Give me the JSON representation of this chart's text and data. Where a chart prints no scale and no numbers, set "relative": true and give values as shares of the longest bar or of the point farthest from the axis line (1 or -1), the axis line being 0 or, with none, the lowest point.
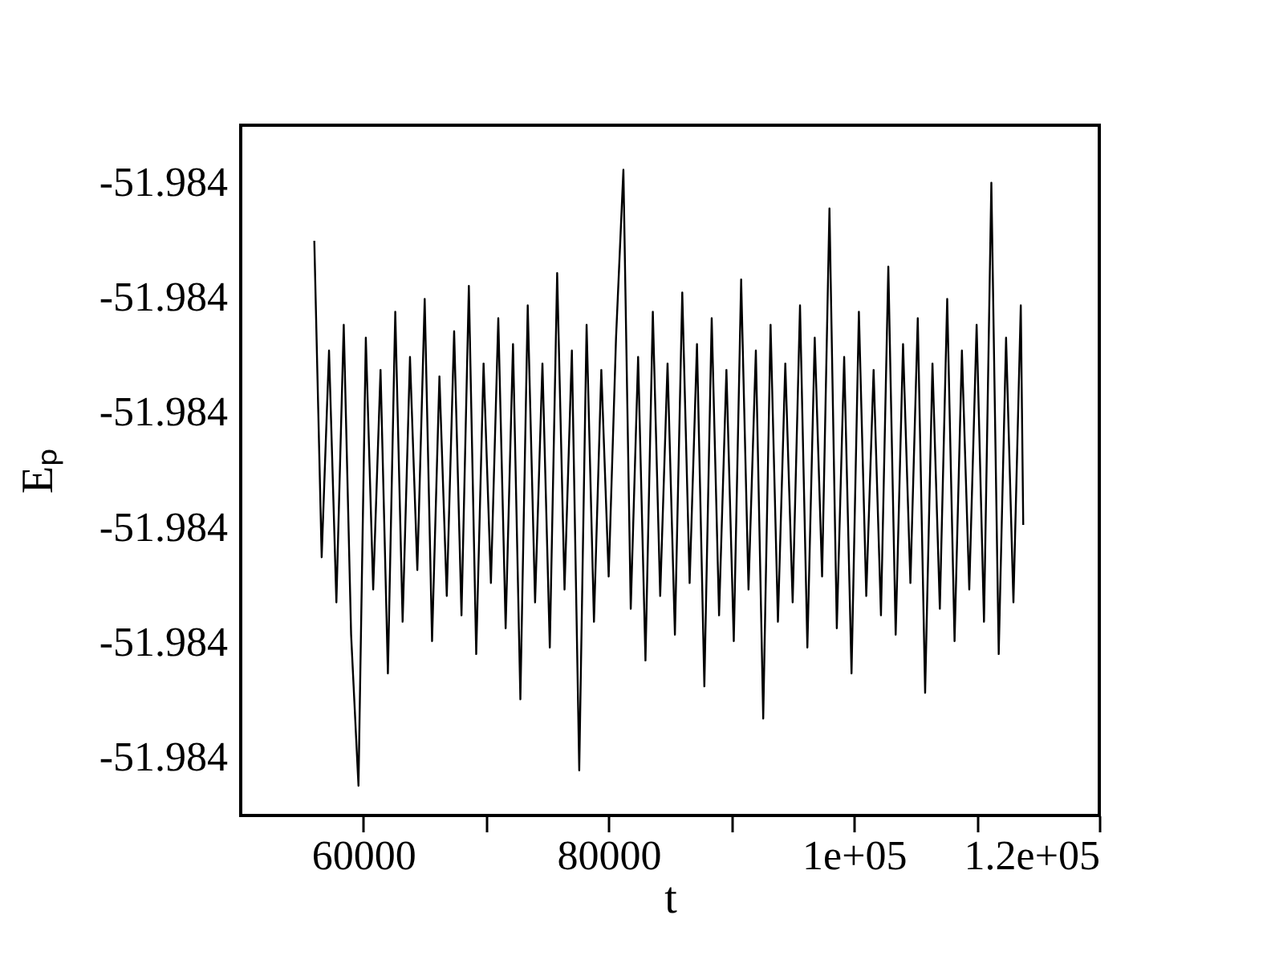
{
  "chart_data": {
    "type": "line",
    "relative": true,
    "xlabel": "t",
    "ylabel": "Eₚ",
    "xlim": [
      50000,
      120000
    ],
    "xticks": [
      {
        "value": 60000,
        "label": "60000"
      },
      {
        "value": 70000,
        "label": null
      },
      {
        "value": 80000,
        "label": "80000"
      },
      {
        "value": 90000,
        "label": null
      },
      {
        "value": 100000,
        "label": "1e+05"
      },
      {
        "value": 110000,
        "label": null
      },
      {
        "value": 120000,
        "label": "1.2e+05"
      }
    ],
    "ylim": [
      0,
      1.069
    ],
    "annotations": [
      "-51.984",
      "-51.984",
      "-51.984",
      "-51.984",
      "-51.984",
      "-51.984"
    ],
    "grid": false,
    "marker": "none",
    "line_style": "solid",
    "series": [
      {
        "color": "#000000",
        "x": [
          56000,
          56600,
          57200,
          57800,
          58400,
          59000,
          59600,
          60200,
          60800,
          61400,
          62000,
          62600,
          63200,
          63800,
          64400,
          65000,
          65600,
          66200,
          66800,
          67400,
          68000,
          68600,
          69200,
          69800,
          70400,
          71000,
          71600,
          72200,
          72800,
          73400,
          74000,
          74600,
          75200,
          75800,
          76400,
          77000,
          77600,
          78200,
          78800,
          79400,
          80000,
          80600,
          81200,
          81800,
          82400,
          83000,
          83600,
          84200,
          84800,
          85400,
          86000,
          86600,
          87200,
          87800,
          88400,
          89000,
          89600,
          90200,
          90800,
          91400,
          92000,
          92600,
          93200,
          93800,
          94400,
          95000,
          95600,
          96200,
          96800,
          97400,
          98000,
          98600,
          99200,
          99800,
          100400,
          101000,
          101600,
          102200,
          102800,
          103400,
          104000,
          104600,
          105200,
          105800,
          106400,
          107000,
          107600,
          108200,
          108800,
          109400,
          110000,
          110600,
          111200,
          111800,
          112400,
          113000,
          113600,
          113800
        ],
        "values": [
          0.89,
          0.4,
          0.72,
          0.33,
          0.76,
          0.28,
          0.046,
          0.74,
          0.35,
          0.69,
          0.22,
          0.78,
          0.3,
          0.71,
          0.38,
          0.8,
          0.27,
          0.68,
          0.34,
          0.75,
          0.31,
          0.82,
          0.25,
          0.7,
          0.36,
          0.77,
          0.29,
          0.73,
          0.18,
          0.79,
          0.33,
          0.7,
          0.26,
          0.84,
          0.35,
          0.72,
          0.07,
          0.76,
          0.3,
          0.69,
          0.37,
          0.74,
          1.0,
          0.32,
          0.71,
          0.24,
          0.78,
          0.34,
          0.7,
          0.28,
          0.81,
          0.36,
          0.73,
          0.2,
          0.77,
          0.31,
          0.69,
          0.27,
          0.83,
          0.35,
          0.72,
          0.15,
          0.76,
          0.3,
          0.7,
          0.33,
          0.79,
          0.26,
          0.74,
          0.37,
          0.94,
          0.29,
          0.71,
          0.22,
          0.78,
          0.34,
          0.69,
          0.31,
          0.85,
          0.28,
          0.73,
          0.36,
          0.77,
          0.19,
          0.7,
          0.32,
          0.8,
          0.27,
          0.72,
          0.35,
          0.76,
          0.3,
          0.98,
          0.25,
          0.74,
          0.33,
          0.79,
          0.45
        ]
      }
    ]
  }
}
